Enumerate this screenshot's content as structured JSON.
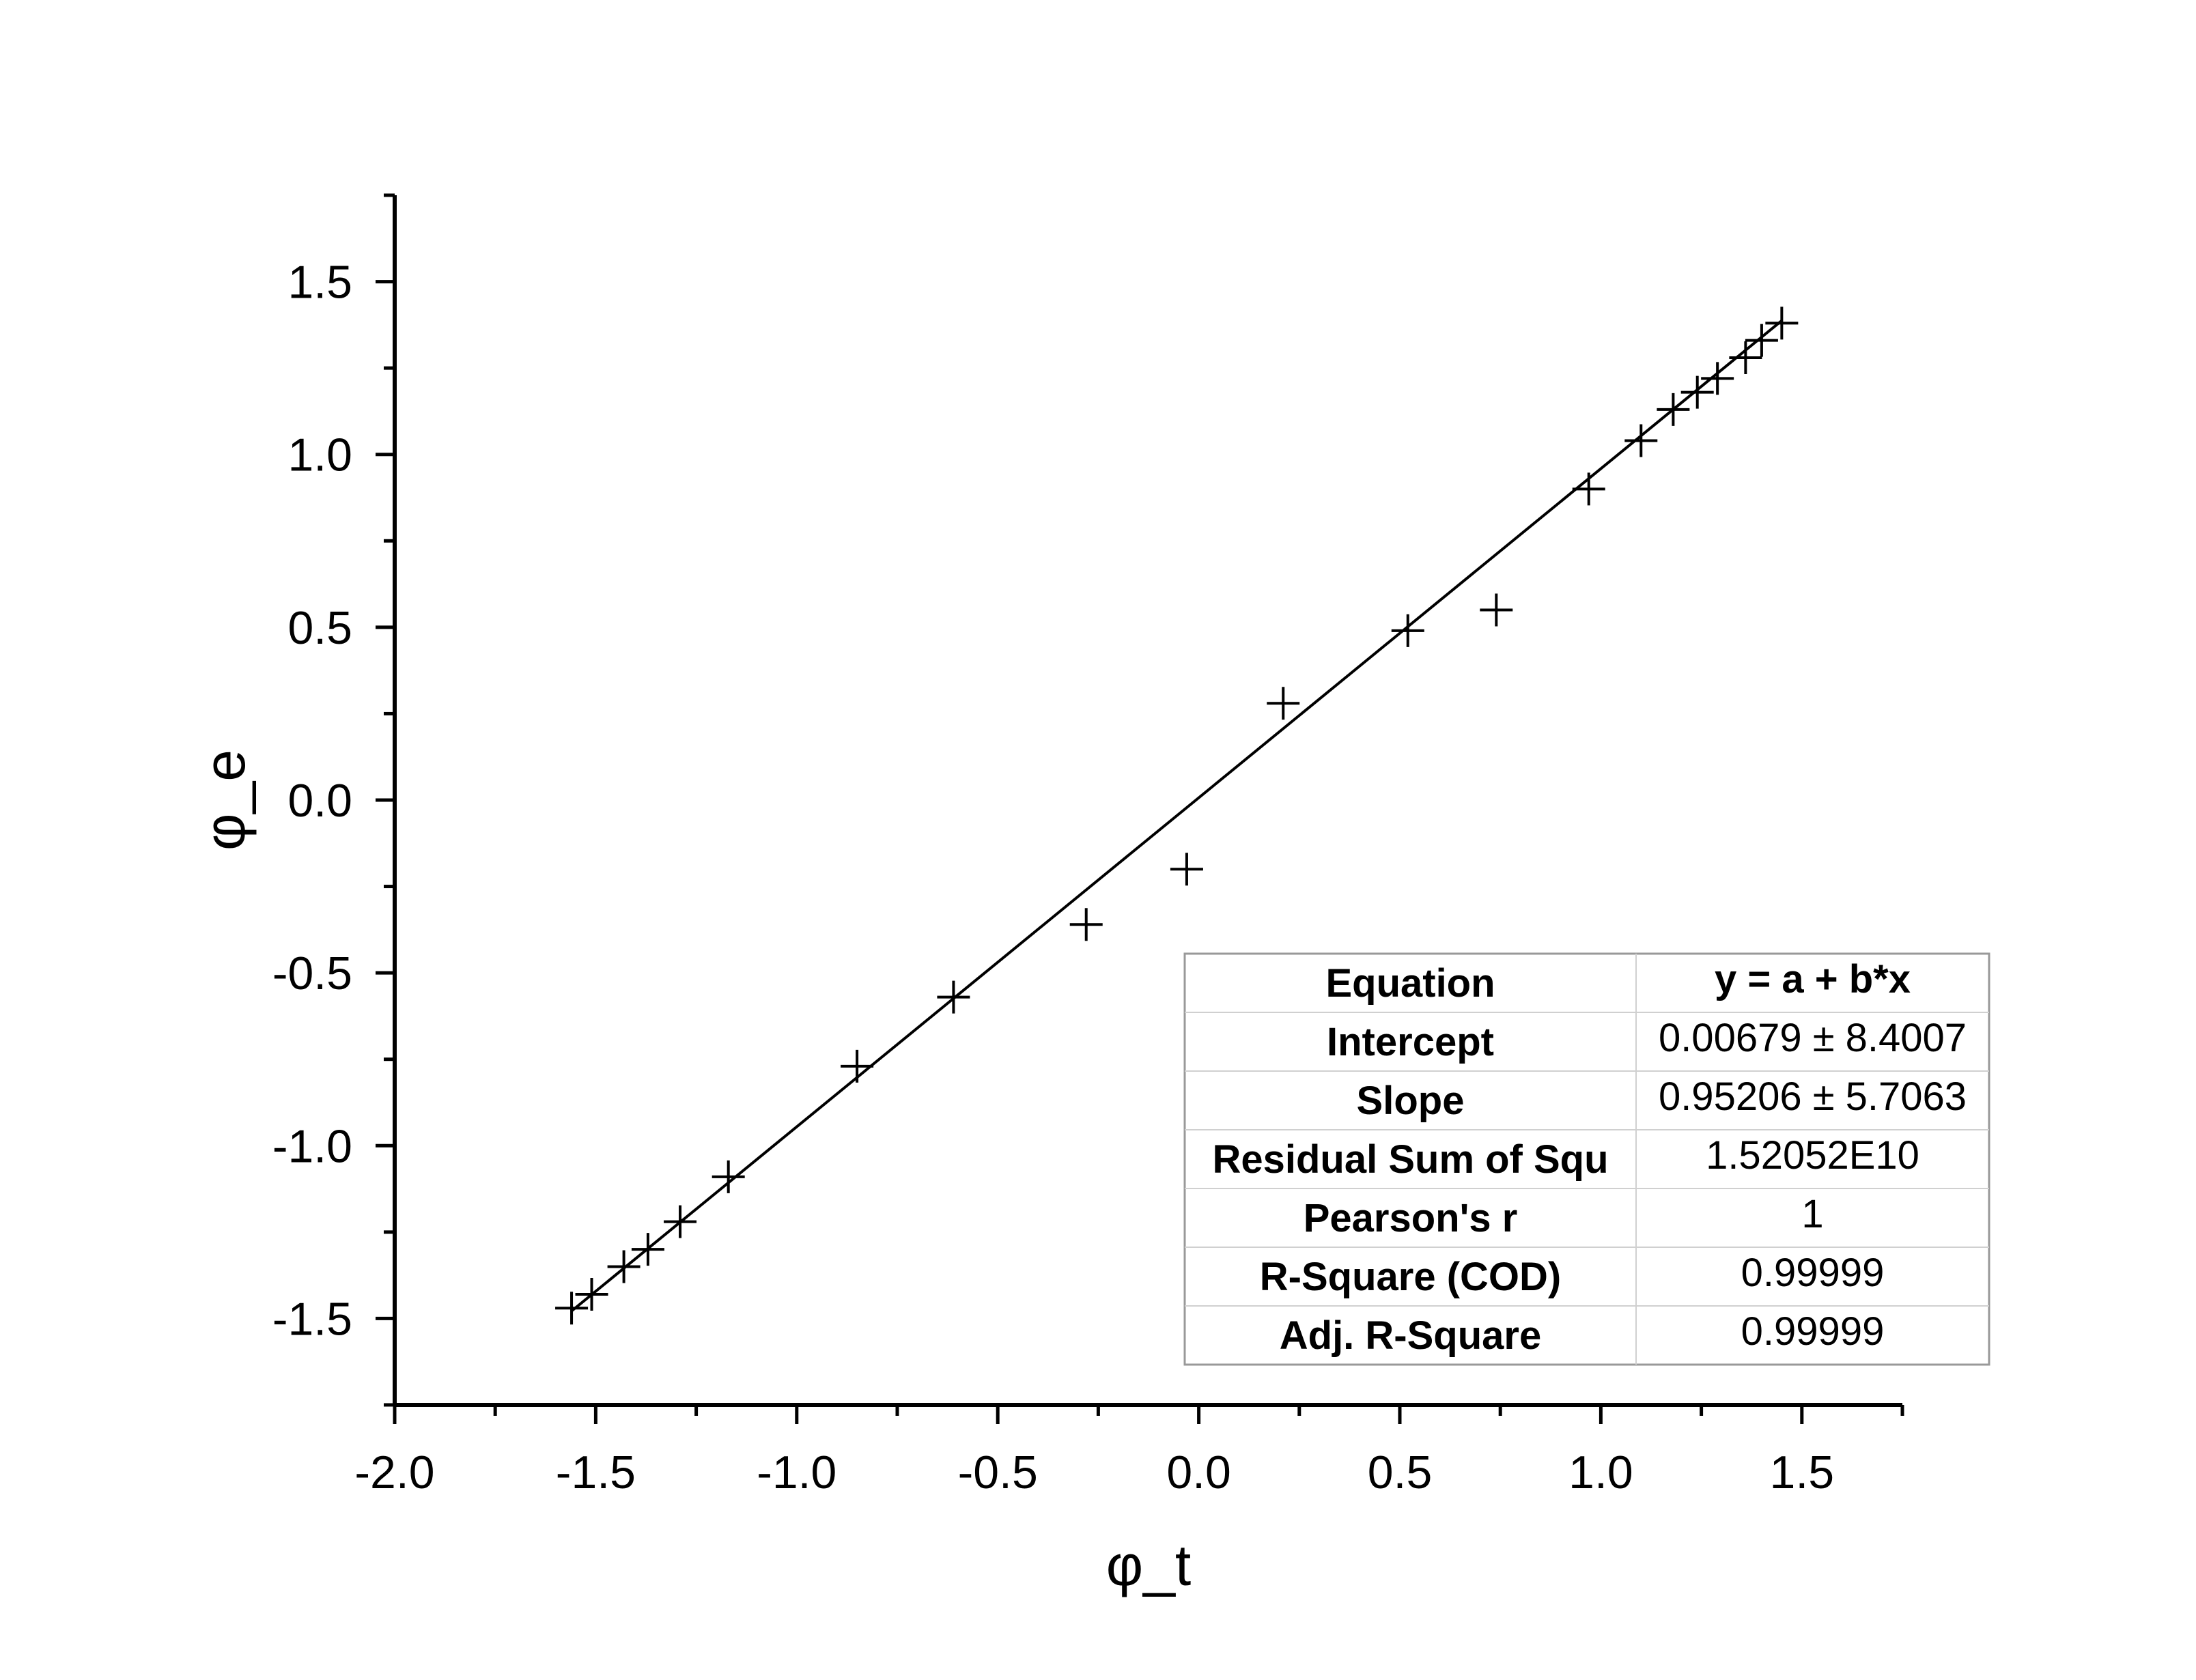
{
  "chart_data": {
    "type": "scatter",
    "xlabel": "φ_t",
    "ylabel": "φ_e",
    "xlim": [
      -2.0,
      1.75
    ],
    "ylim": [
      -1.75,
      1.75
    ],
    "x_ticks": [
      -2.0,
      -1.5,
      -1.0,
      -0.5,
      0.0,
      0.5,
      1.0,
      1.5
    ],
    "y_ticks": [
      -1.5,
      -1.0,
      -0.5,
      0.0,
      0.5,
      1.0,
      1.5
    ],
    "x_tick_labels": [
      "-2.0",
      "-1.5",
      "-1.0",
      "-0.5",
      "0.0",
      "0.5",
      "1.0",
      "1.5"
    ],
    "y_tick_labels": [
      "-1.5",
      "-1.0",
      "-0.5",
      "0.0",
      "0.5",
      "1.0",
      "1.5"
    ],
    "marker": "plus",
    "grid": false,
    "series": [
      {
        "x": [
          -1.56,
          -1.51,
          -1.43,
          -1.37,
          -1.29,
          -1.17,
          -0.85,
          -0.61,
          -0.28,
          -0.03,
          0.21,
          0.52,
          0.74,
          0.97,
          1.1,
          1.18,
          1.24,
          1.29,
          1.36,
          1.4,
          1.45
        ],
        "y": [
          -1.47,
          -1.43,
          -1.35,
          -1.3,
          -1.22,
          -1.09,
          -0.77,
          -0.57,
          -0.36,
          -0.2,
          0.28,
          0.49,
          0.55,
          0.9,
          1.04,
          1.13,
          1.18,
          1.22,
          1.28,
          1.33,
          1.38
        ]
      }
    ],
    "fit": {
      "intercept": 0.00679,
      "slope": 0.95206,
      "x_range": [
        -1.56,
        1.45
      ]
    },
    "legend_placement": "bottom-right",
    "stats_table": [
      {
        "label": "Equation",
        "value": "y = a + b*x",
        "value_bold": true
      },
      {
        "label": "Intercept",
        "value": "0.00679 ± 8.4007",
        "value_bold": false
      },
      {
        "label": "Slope",
        "value": "0.95206 ± 5.7063",
        "value_bold": false
      },
      {
        "label": "Residual Sum of Squ",
        "value": "1.52052E10",
        "value_bold": false
      },
      {
        "label": "Pearson's r",
        "value": "1",
        "value_bold": false
      },
      {
        "label": "R-Square (COD)",
        "value": "0.99999",
        "value_bold": false
      },
      {
        "label": "Adj. R-Square",
        "value": "0.99999",
        "value_bold": false
      }
    ]
  }
}
